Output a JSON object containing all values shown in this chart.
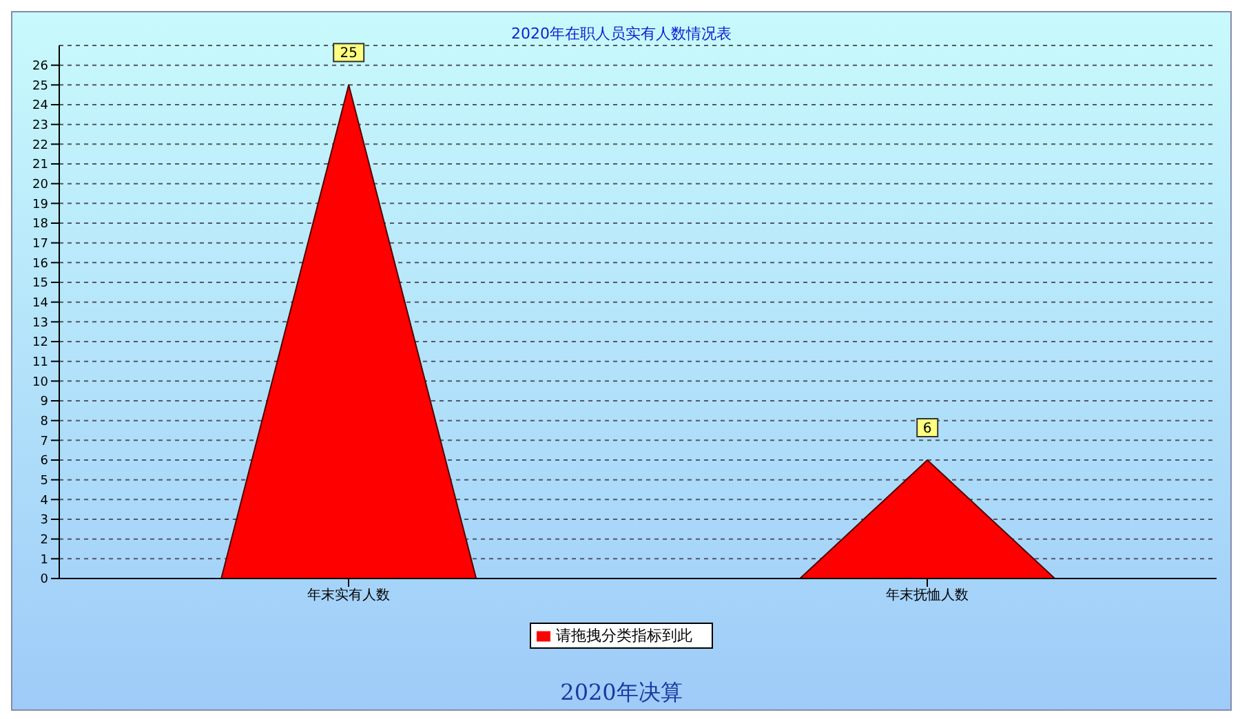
{
  "chart_data": {
    "type": "bar",
    "title": "2020年在职人员实有人数情况表",
    "categories": [
      "年末实有人数",
      "年末抚恤人数"
    ],
    "series": [
      {
        "name": "请拖拽分类指标到此",
        "color": "#ff0000",
        "values": [
          25,
          6
        ]
      }
    ],
    "ylim": [
      0,
      27
    ],
    "yticks": [
      0,
      1,
      2,
      3,
      4,
      5,
      6,
      7,
      8,
      9,
      10,
      11,
      12,
      13,
      14,
      15,
      16,
      17,
      18,
      19,
      20,
      21,
      22,
      23,
      24,
      25,
      26
    ],
    "grid": "y",
    "legend": "bottom",
    "data_labels": true,
    "annotations": [
      "2020年决算"
    ]
  }
}
